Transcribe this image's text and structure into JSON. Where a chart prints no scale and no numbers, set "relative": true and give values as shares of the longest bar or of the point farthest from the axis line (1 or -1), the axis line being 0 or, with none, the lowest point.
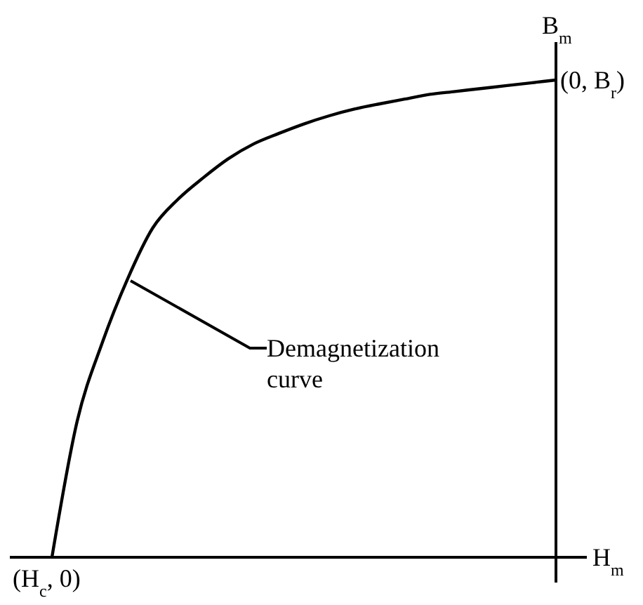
{
  "chart_data": {
    "type": "line",
    "relative": true,
    "xlabel": "H$_{m}$",
    "ylabel": "B$_{m}$",
    "categories": [
      null,
      null,
      null,
      null,
      null,
      null,
      null,
      null,
      null,
      null,
      null,
      null,
      null,
      null,
      null,
      null,
      null,
      null,
      null,
      null,
      null
    ],
    "series": [
      {
        "color": "#000000",
        "values": [
          0,
          0.285,
          0.45,
          0.583,
          0.69,
          0.75,
          0.795,
          0.835,
          0.866,
          0.888,
          0.908,
          0.925,
          0.939,
          0.95,
          0.96,
          0.97,
          0.976,
          0.982,
          0.988,
          0.994,
          1
        ]
      }
    ],
    "annotations": [
      "Demagnetization curve",
      "(H$_{c}$, 0)",
      "(0, B$_{r}$)"
    ],
    "marker": "none",
    "line_style": "solid"
  }
}
